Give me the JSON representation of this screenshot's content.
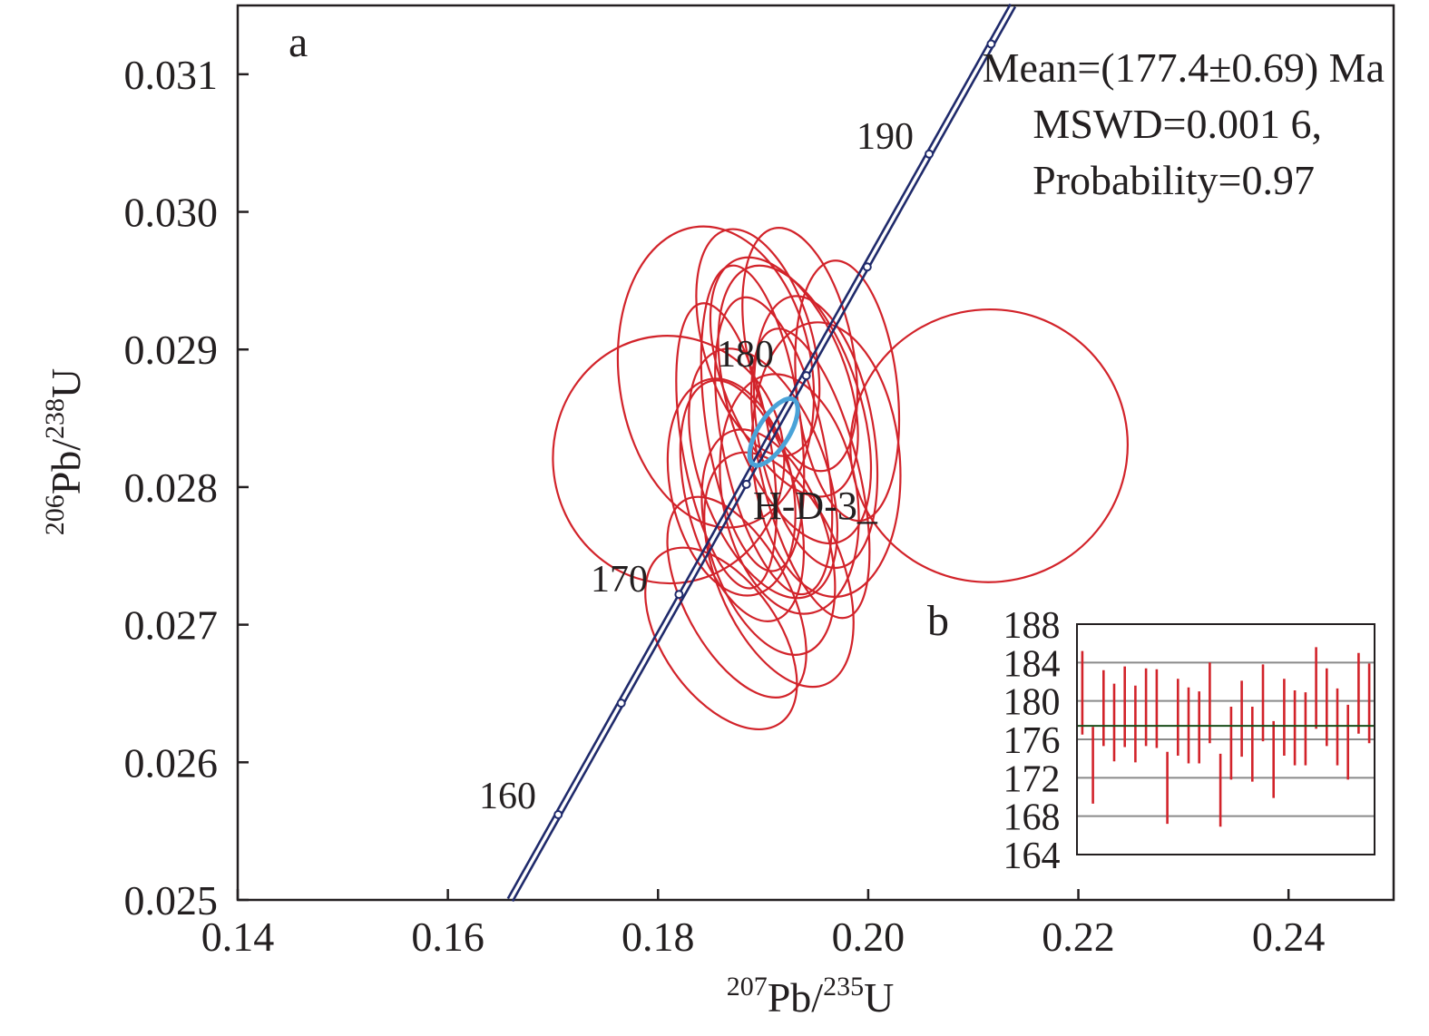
{
  "chart_data": [
    {
      "panel": "a",
      "type": "scatter",
      "xlabel": {
        "sup1": "207",
        "base1": "Pb/",
        "sup2": "235",
        "base2": "U"
      },
      "ylabel": {
        "sup1": "206",
        "base1": "Pb/",
        "sup2": "238",
        "base2": "U"
      },
      "xlim": [
        0.14,
        0.25
      ],
      "ylim": [
        0.025,
        0.0315
      ],
      "xticks": [
        0.14,
        0.16,
        0.18,
        0.2,
        0.22,
        0.24
      ],
      "xtick_labels": [
        "0.14",
        "0.16",
        "0.18",
        "0.20",
        "0.22",
        "0.24"
      ],
      "yticks": [
        0.025,
        0.026,
        0.027,
        0.028,
        0.029,
        0.03,
        0.031
      ],
      "ytick_labels": [
        "0.025",
        "0.026",
        "0.027",
        "0.028",
        "0.029",
        "0.030",
        "0.031"
      ],
      "stats": [
        "Mean=(177.4±0.69) Ma",
        "MSWD=0.001 6,",
        "Probability=0.97"
      ],
      "sample_label": "H-D-3_",
      "concordia": {
        "color": "#1f2a6b",
        "ages_ma": [
          160,
          170,
          180,
          190
        ],
        "age_labels": [
          "160",
          "170",
          "180",
          "190"
        ],
        "markers": [
          {
            "x": 0.1705,
            "y": 0.02562
          },
          {
            "x": 0.1765,
            "y": 0.02643
          },
          {
            "x": 0.182,
            "y": 0.02722
          },
          {
            "x": 0.1884,
            "y": 0.02802
          },
          {
            "x": 0.1941,
            "y": 0.02881
          },
          {
            "x": 0.1999,
            "y": 0.0296
          },
          {
            "x": 0.2058,
            "y": 0.03042
          },
          {
            "x": 0.2117,
            "y": 0.03122
          }
        ]
      },
      "ellipses": [
        {
          "cx": 0.181,
          "cy": 0.0282,
          "rx": 0.011,
          "ry": 0.0009,
          "angle": 5
        },
        {
          "cx": 0.1855,
          "cy": 0.0288,
          "rx": 0.0092,
          "ry": 0.0011,
          "angle": 8
        },
        {
          "cx": 0.2115,
          "cy": 0.0283,
          "rx": 0.0132,
          "ry": 0.00099,
          "angle": 12
        },
        {
          "cx": 0.186,
          "cy": 0.0269,
          "rx": 0.0055,
          "ry": 0.00075,
          "angle": 35
        },
        {
          "cx": 0.191,
          "cy": 0.0283,
          "rx": 0.0048,
          "ry": 0.0011,
          "angle": 12
        },
        {
          "cx": 0.193,
          "cy": 0.0286,
          "rx": 0.0062,
          "ry": 0.00105,
          "angle": 18
        },
        {
          "cx": 0.19,
          "cy": 0.0281,
          "rx": 0.006,
          "ry": 0.00095,
          "angle": 20
        },
        {
          "cx": 0.188,
          "cy": 0.0279,
          "rx": 0.0052,
          "ry": 0.0009,
          "angle": 15
        },
        {
          "cx": 0.195,
          "cy": 0.0284,
          "rx": 0.0055,
          "ry": 0.001,
          "angle": 10
        },
        {
          "cx": 0.192,
          "cy": 0.0288,
          "rx": 0.0058,
          "ry": 0.00092,
          "angle": 22
        },
        {
          "cx": 0.189,
          "cy": 0.0285,
          "rx": 0.0045,
          "ry": 0.00112,
          "angle": 8
        },
        {
          "cx": 0.196,
          "cy": 0.0282,
          "rx": 0.007,
          "ry": 0.001,
          "angle": 5
        },
        {
          "cx": 0.1875,
          "cy": 0.0272,
          "rx": 0.005,
          "ry": 0.0008,
          "angle": 28
        },
        {
          "cx": 0.1905,
          "cy": 0.0276,
          "rx": 0.0056,
          "ry": 0.00085,
          "angle": 18
        },
        {
          "cx": 0.1935,
          "cy": 0.029,
          "rx": 0.005,
          "ry": 0.0009,
          "angle": 12
        },
        {
          "cx": 0.1865,
          "cy": 0.0283,
          "rx": 0.0042,
          "ry": 0.00105,
          "angle": 10
        },
        {
          "cx": 0.1925,
          "cy": 0.02795,
          "rx": 0.0064,
          "ry": 0.00088,
          "angle": 10
        },
        {
          "cx": 0.198,
          "cy": 0.0287,
          "rx": 0.0048,
          "ry": 0.00095,
          "angle": 6
        },
        {
          "cx": 0.1895,
          "cy": 0.02905,
          "rx": 0.0052,
          "ry": 0.00085,
          "angle": 16
        },
        {
          "cx": 0.1915,
          "cy": 0.0274,
          "rx": 0.006,
          "ry": 0.0009,
          "angle": 22
        },
        {
          "cx": 0.187,
          "cy": 0.028,
          "rx": 0.0058,
          "ry": 0.0008,
          "angle": 12
        },
        {
          "cx": 0.1945,
          "cy": 0.0281,
          "rx": 0.0046,
          "ry": 0.00108,
          "angle": 14
        }
      ],
      "ellipse_color": "#d2232a",
      "mean_ellipse": {
        "cx": 0.191,
        "cy": 0.0284,
        "rx": 0.0007,
        "ry": 0.00042,
        "angle": 58,
        "color": "#4aa3d8"
      }
    },
    {
      "panel": "b",
      "type": "bar",
      "ylim": [
        164,
        188
      ],
      "yticks": [
        164,
        168,
        172,
        176,
        180,
        184,
        188
      ],
      "ytick_labels": [
        "164",
        "168",
        "172",
        "176",
        "180",
        "184",
        "188"
      ],
      "gridlines": [
        168,
        172,
        176,
        180,
        184
      ],
      "mean": 177.4,
      "bar_color": "#d2232a",
      "error_bars": [
        [
          176.5,
          185.2
        ],
        [
          169.3,
          177.3
        ],
        [
          175.3,
          183.2
        ],
        [
          173.7,
          181.8
        ],
        [
          175.2,
          183.6
        ],
        [
          173.6,
          181.6
        ],
        [
          175.3,
          183.4
        ],
        [
          175.1,
          183.3
        ],
        [
          167.2,
          174.7
        ],
        [
          174.3,
          182.3
        ],
        [
          173.5,
          181.4
        ],
        [
          173.5,
          181.0
        ],
        [
          175.6,
          184.0
        ],
        [
          166.9,
          174.5
        ],
        [
          171.8,
          179.4
        ],
        [
          174.2,
          182.1
        ],
        [
          171.6,
          179.4
        ],
        [
          175.8,
          183.8
        ],
        [
          169.9,
          177.9
        ],
        [
          174.3,
          182.3
        ],
        [
          173.3,
          181.1
        ],
        [
          173.3,
          180.9
        ],
        [
          177.1,
          185.6
        ],
        [
          175.3,
          183.4
        ],
        [
          173.3,
          181.3
        ],
        [
          171.8,
          179.6
        ],
        [
          176.6,
          185.0
        ],
        [
          175.6,
          183.9
        ]
      ]
    }
  ]
}
